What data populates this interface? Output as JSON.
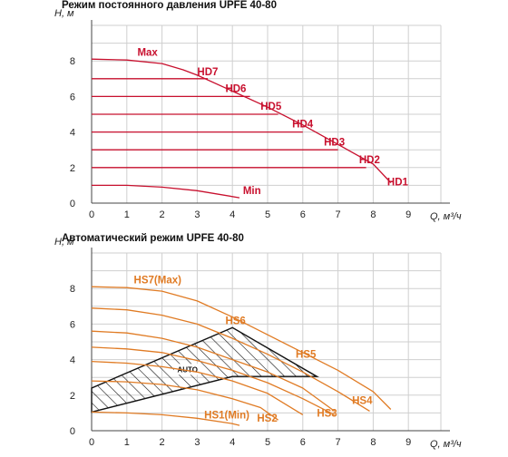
{
  "chart_data": [
    {
      "type": "line",
      "title": "Режим постоянного давления UPFE 40-80",
      "ylabel": "H, м",
      "xlabel": "Q, м³/ч",
      "xlim": [
        0,
        9.5
      ],
      "ylim": [
        0,
        9
      ],
      "xticks": [
        "0",
        "1",
        "2",
        "3",
        "4",
        "5",
        "6",
        "7",
        "8",
        "9"
      ],
      "yticks": [
        "0",
        "2",
        "4",
        "6",
        "8"
      ],
      "grid": true,
      "color": "#c8102e",
      "series": [
        {
          "name": "Max",
          "points": [
            [
              0,
              8.1
            ],
            [
              1,
              8.05
            ],
            [
              2,
              7.85
            ],
            [
              2.6,
              7.5
            ],
            [
              3,
              7.2
            ],
            [
              4,
              6.3
            ],
            [
              5,
              5.4
            ],
            [
              6,
              4.4
            ],
            [
              7,
              3.3
            ],
            [
              8,
              2.2
            ],
            [
              8.5,
              1.15
            ]
          ],
          "label_at": [
            1.3,
            8.3
          ]
        },
        {
          "name": "HD7",
          "points": [
            [
              0,
              7.0
            ],
            [
              3.3,
              7.0
            ]
          ],
          "label_at": [
            3.0,
            7.2
          ]
        },
        {
          "name": "HD6",
          "points": [
            [
              0,
              6.0
            ],
            [
              4.5,
              6.0
            ]
          ],
          "label_at": [
            3.8,
            6.25
          ]
        },
        {
          "name": "HD5",
          "points": [
            [
              0,
              5.0
            ],
            [
              5.3,
              5.0
            ]
          ],
          "label_at": [
            4.8,
            5.25
          ]
        },
        {
          "name": "HD4",
          "points": [
            [
              0,
              4.0
            ],
            [
              6.0,
              4.0
            ]
          ],
          "label_at": [
            5.7,
            4.25
          ]
        },
        {
          "name": "HD3",
          "points": [
            [
              0,
              3.0
            ],
            [
              7.0,
              3.0
            ]
          ],
          "label_at": [
            6.6,
            3.25
          ]
        },
        {
          "name": "HD2",
          "points": [
            [
              0,
              2.0
            ],
            [
              7.8,
              2.0
            ]
          ],
          "label_at": [
            7.6,
            2.25
          ]
        },
        {
          "name": "HD1",
          "points": [
            [
              8.5,
              1.15
            ]
          ],
          "label_at": [
            8.4,
            1.0
          ]
        },
        {
          "name": "Min",
          "points": [
            [
              0,
              1.0
            ],
            [
              1,
              1.0
            ],
            [
              2,
              0.9
            ],
            [
              3,
              0.7
            ],
            [
              4.2,
              0.3
            ]
          ],
          "label_at": [
            4.3,
            0.5
          ]
        }
      ]
    },
    {
      "type": "line",
      "title": "Автоматический режим UPFE 40-80",
      "ylabel": "H, м",
      "xlabel": "Q, м³/ч",
      "xlim": [
        0,
        9.5
      ],
      "ylim": [
        0,
        9
      ],
      "xticks": [
        "0",
        "1",
        "2",
        "3",
        "4",
        "5",
        "6",
        "7",
        "8",
        "9"
      ],
      "yticks": [
        "0",
        "2",
        "4",
        "6",
        "8"
      ],
      "grid": true,
      "color": "#e07b24",
      "series": [
        {
          "name": "HS7(Max)",
          "points": [
            [
              0,
              8.1
            ],
            [
              1,
              8.05
            ],
            [
              2,
              7.85
            ],
            [
              3,
              7.3
            ],
            [
              4,
              6.4
            ],
            [
              5,
              5.4
            ],
            [
              6,
              4.4
            ],
            [
              7,
              3.4
            ],
            [
              8,
              2.2
            ],
            [
              8.5,
              1.2
            ]
          ],
          "label_at": [
            1.2,
            8.3
          ]
        },
        {
          "name": "HS6",
          "points": [
            [
              0,
              6.9
            ],
            [
              1,
              6.8
            ],
            [
              2,
              6.5
            ],
            [
              3,
              6.0
            ],
            [
              4,
              5.2
            ],
            [
              5,
              4.3
            ],
            [
              6,
              3.3
            ],
            [
              7,
              2.2
            ],
            [
              7.9,
              1.1
            ]
          ],
          "label_at": [
            3.8,
            6.0
          ]
        },
        {
          "name": "HS5",
          "points": [
            [
              0,
              5.6
            ],
            [
              1,
              5.5
            ],
            [
              2,
              5.2
            ],
            [
              3,
              4.7
            ],
            [
              4,
              4.0
            ],
            [
              5,
              3.3
            ],
            [
              6,
              2.4
            ],
            [
              6.9,
              1.1
            ]
          ],
          "label_at": [
            5.8,
            4.1
          ]
        },
        {
          "name": "HS4",
          "points": [
            [
              0,
              4.7
            ],
            [
              1,
              4.6
            ],
            [
              2,
              4.4
            ],
            [
              3,
              3.95
            ],
            [
              4,
              3.4
            ],
            [
              5,
              2.7
            ],
            [
              6,
              1.8
            ],
            [
              6.9,
              0.9
            ]
          ],
          "label_at": [
            7.4,
            1.5
          ]
        },
        {
          "name": "HS3",
          "points": [
            [
              0,
              3.9
            ],
            [
              1,
              3.8
            ],
            [
              2,
              3.6
            ],
            [
              3,
              3.3
            ],
            [
              4,
              2.8
            ],
            [
              5,
              2.1
            ],
            [
              6,
              0.9
            ]
          ],
          "label_at": [
            6.4,
            0.8
          ]
        },
        {
          "name": "HS2",
          "points": [
            [
              0,
              2.8
            ],
            [
              1,
              2.75
            ],
            [
              2,
              2.6
            ],
            [
              3,
              2.3
            ],
            [
              4,
              1.8
            ],
            [
              4.8,
              1.3
            ],
            [
              5.3,
              0.6
            ]
          ],
          "label_at": [
            4.7,
            0.5
          ]
        },
        {
          "name": "HS1(Min)",
          "points": [
            [
              0,
              1.05
            ],
            [
              1,
              1.0
            ],
            [
              2,
              0.9
            ],
            [
              3,
              0.7
            ],
            [
              4,
              0.4
            ],
            [
              4.2,
              0.3
            ]
          ],
          "label_at": [
            3.2,
            0.7
          ]
        }
      ],
      "auto_region": {
        "label": "AUTO",
        "label_at": [
          2.7,
          3.3
        ],
        "polygon": [
          [
            0,
            1.05
          ],
          [
            4,
            3.05
          ],
          [
            6.4,
            3.05
          ],
          [
            4,
            5.8
          ],
          [
            0,
            2.4
          ]
        ]
      }
    }
  ]
}
